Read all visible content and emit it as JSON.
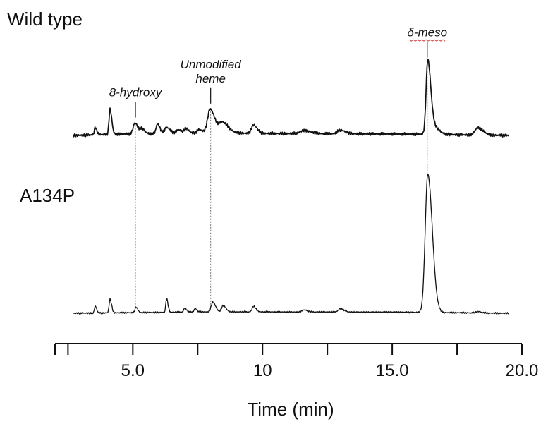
{
  "chart_data": {
    "type": "line",
    "xlabel": "Time (min)",
    "xlim": [
      2.0,
      20.0
    ],
    "xticks_major": [
      2.5,
      5.0,
      7.5,
      10.0,
      12.5,
      15.0,
      17.5,
      20.0
    ],
    "xtick_labels": [
      {
        "x": 5.0,
        "label": "5.0"
      },
      {
        "x": 10.0,
        "label": "10"
      },
      {
        "x": 15.0,
        "label": "15.0"
      },
      {
        "x": 20.0,
        "label": "20.0"
      }
    ],
    "grid": false,
    "trace_range": [
      2.7,
      19.5
    ],
    "series": [
      {
        "name": "Wild type",
        "color": "#111111",
        "baseline_drift": [
          [
            2.7,
            0.0
          ],
          [
            4.5,
            0.012
          ],
          [
            8.0,
            0.02
          ],
          [
            12.0,
            0.015
          ],
          [
            15.5,
            0.012
          ],
          [
            19.5,
            0.0
          ]
        ],
        "peaks": [
          {
            "t": 3.55,
            "h": 0.06,
            "w": 0.045
          },
          {
            "t": 4.12,
            "h": 0.21,
            "w": 0.05
          },
          {
            "t": 5.08,
            "h": 0.09,
            "w": 0.09
          },
          {
            "t": 5.35,
            "h": 0.04,
            "w": 0.08
          },
          {
            "t": 5.95,
            "h": 0.08,
            "w": 0.07
          },
          {
            "t": 6.3,
            "h": 0.05,
            "w": 0.1
          },
          {
            "t": 6.75,
            "h": 0.03,
            "w": 0.1
          },
          {
            "t": 7.05,
            "h": 0.04,
            "w": 0.08
          },
          {
            "t": 7.55,
            "h": 0.03,
            "w": 0.1
          },
          {
            "t": 7.98,
            "h": 0.2,
            "w": 0.13
          },
          {
            "t": 8.45,
            "h": 0.09,
            "w": 0.17
          },
          {
            "t": 9.65,
            "h": 0.07,
            "w": 0.1
          },
          {
            "t": 11.6,
            "h": 0.025,
            "w": 0.2
          },
          {
            "t": 13.0,
            "h": 0.03,
            "w": 0.15
          },
          {
            "t": 16.37,
            "h": 0.62,
            "w": 0.085
          },
          {
            "t": 16.62,
            "h": 0.06,
            "w": 0.14
          },
          {
            "t": 18.3,
            "h": 0.06,
            "w": 0.15
          }
        ]
      },
      {
        "name": "A134P",
        "color": "#111111",
        "baseline_drift": [
          [
            2.7,
            0.0
          ],
          [
            8.0,
            0.01
          ],
          [
            15.0,
            0.008
          ],
          [
            19.5,
            0.0
          ]
        ],
        "peaks": [
          {
            "t": 3.55,
            "h": 0.05,
            "w": 0.04
          },
          {
            "t": 4.12,
            "h": 0.1,
            "w": 0.045
          },
          {
            "t": 5.12,
            "h": 0.04,
            "w": 0.05
          },
          {
            "t": 6.3,
            "h": 0.1,
            "w": 0.04
          },
          {
            "t": 7.0,
            "h": 0.03,
            "w": 0.05
          },
          {
            "t": 7.4,
            "h": 0.025,
            "w": 0.05
          },
          {
            "t": 8.08,
            "h": 0.07,
            "w": 0.08
          },
          {
            "t": 8.48,
            "h": 0.045,
            "w": 0.08
          },
          {
            "t": 9.65,
            "h": 0.04,
            "w": 0.07
          },
          {
            "t": 11.6,
            "h": 0.015,
            "w": 0.1
          },
          {
            "t": 13.0,
            "h": 0.025,
            "w": 0.1
          },
          {
            "t": 16.37,
            "h": 1.0,
            "w": 0.13
          },
          {
            "t": 18.3,
            "h": 0.01,
            "w": 0.1
          }
        ]
      }
    ],
    "annotations": [
      {
        "label": "8-hydroxy",
        "lines": [
          "8-hydroxy"
        ],
        "t": 5.1,
        "underline": false
      },
      {
        "label": "Unmodified heme",
        "lines": [
          "Unmodified",
          "heme"
        ],
        "t": 8.0,
        "underline": false
      },
      {
        "label": "δ-meso",
        "lines": [
          "δ-meso"
        ],
        "t": 16.35,
        "underline": true,
        "underline_color": "#d23a3a"
      }
    ]
  }
}
